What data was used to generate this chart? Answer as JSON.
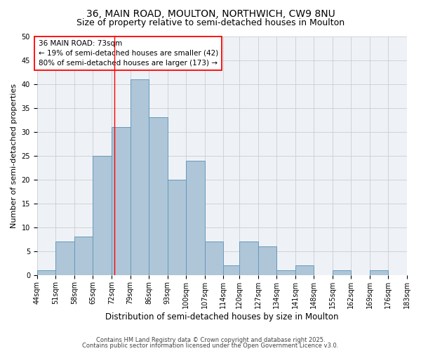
{
  "title1": "36, MAIN ROAD, MOULTON, NORTHWICH, CW9 8NU",
  "title2": "Size of property relative to semi-detached houses in Moulton",
  "xlabel": "Distribution of semi-detached houses by size in Moulton",
  "ylabel": "Number of semi-detached properties",
  "bin_labels": [
    "44sqm",
    "51sqm",
    "58sqm",
    "65sqm",
    "72sqm",
    "79sqm",
    "86sqm",
    "93sqm",
    "100sqm",
    "107sqm",
    "114sqm",
    "120sqm",
    "127sqm",
    "134sqm",
    "141sqm",
    "148sqm",
    "155sqm",
    "162sqm",
    "169sqm",
    "176sqm",
    "183sqm"
  ],
  "bin_edges": [
    44,
    51,
    58,
    65,
    72,
    79,
    86,
    93,
    100,
    107,
    114,
    120,
    127,
    134,
    141,
    148,
    155,
    162,
    169,
    176,
    183
  ],
  "bar_heights": [
    1,
    7,
    8,
    25,
    31,
    41,
    33,
    20,
    24,
    7,
    2,
    7,
    6,
    1,
    2,
    0,
    1,
    0,
    1,
    0
  ],
  "bar_color": "#aec6d8",
  "bar_edge_color": "#6699bb",
  "bar_linewidth": 0.7,
  "red_line_x": 73,
  "annotation_title": "36 MAIN ROAD: 73sqm",
  "annotation_line1": "← 19% of semi-detached houses are smaller (42)",
  "annotation_line2": "80% of semi-detached houses are larger (173) →",
  "annotation_box_color": "white",
  "annotation_box_edge_color": "red",
  "ylim": [
    0,
    50
  ],
  "yticks": [
    0,
    5,
    10,
    15,
    20,
    25,
    30,
    35,
    40,
    45,
    50
  ],
  "grid_color": "#cccccc",
  "bg_color": "#eef2f7",
  "footnote1": "Contains HM Land Registry data © Crown copyright and database right 2025.",
  "footnote2": "Contains public sector information licensed under the Open Government Licence v3.0.",
  "title1_fontsize": 10,
  "title2_fontsize": 9,
  "xlabel_fontsize": 8.5,
  "ylabel_fontsize": 8,
  "tick_fontsize": 7,
  "annotation_fontsize": 7.5,
  "footnote_fontsize": 6
}
